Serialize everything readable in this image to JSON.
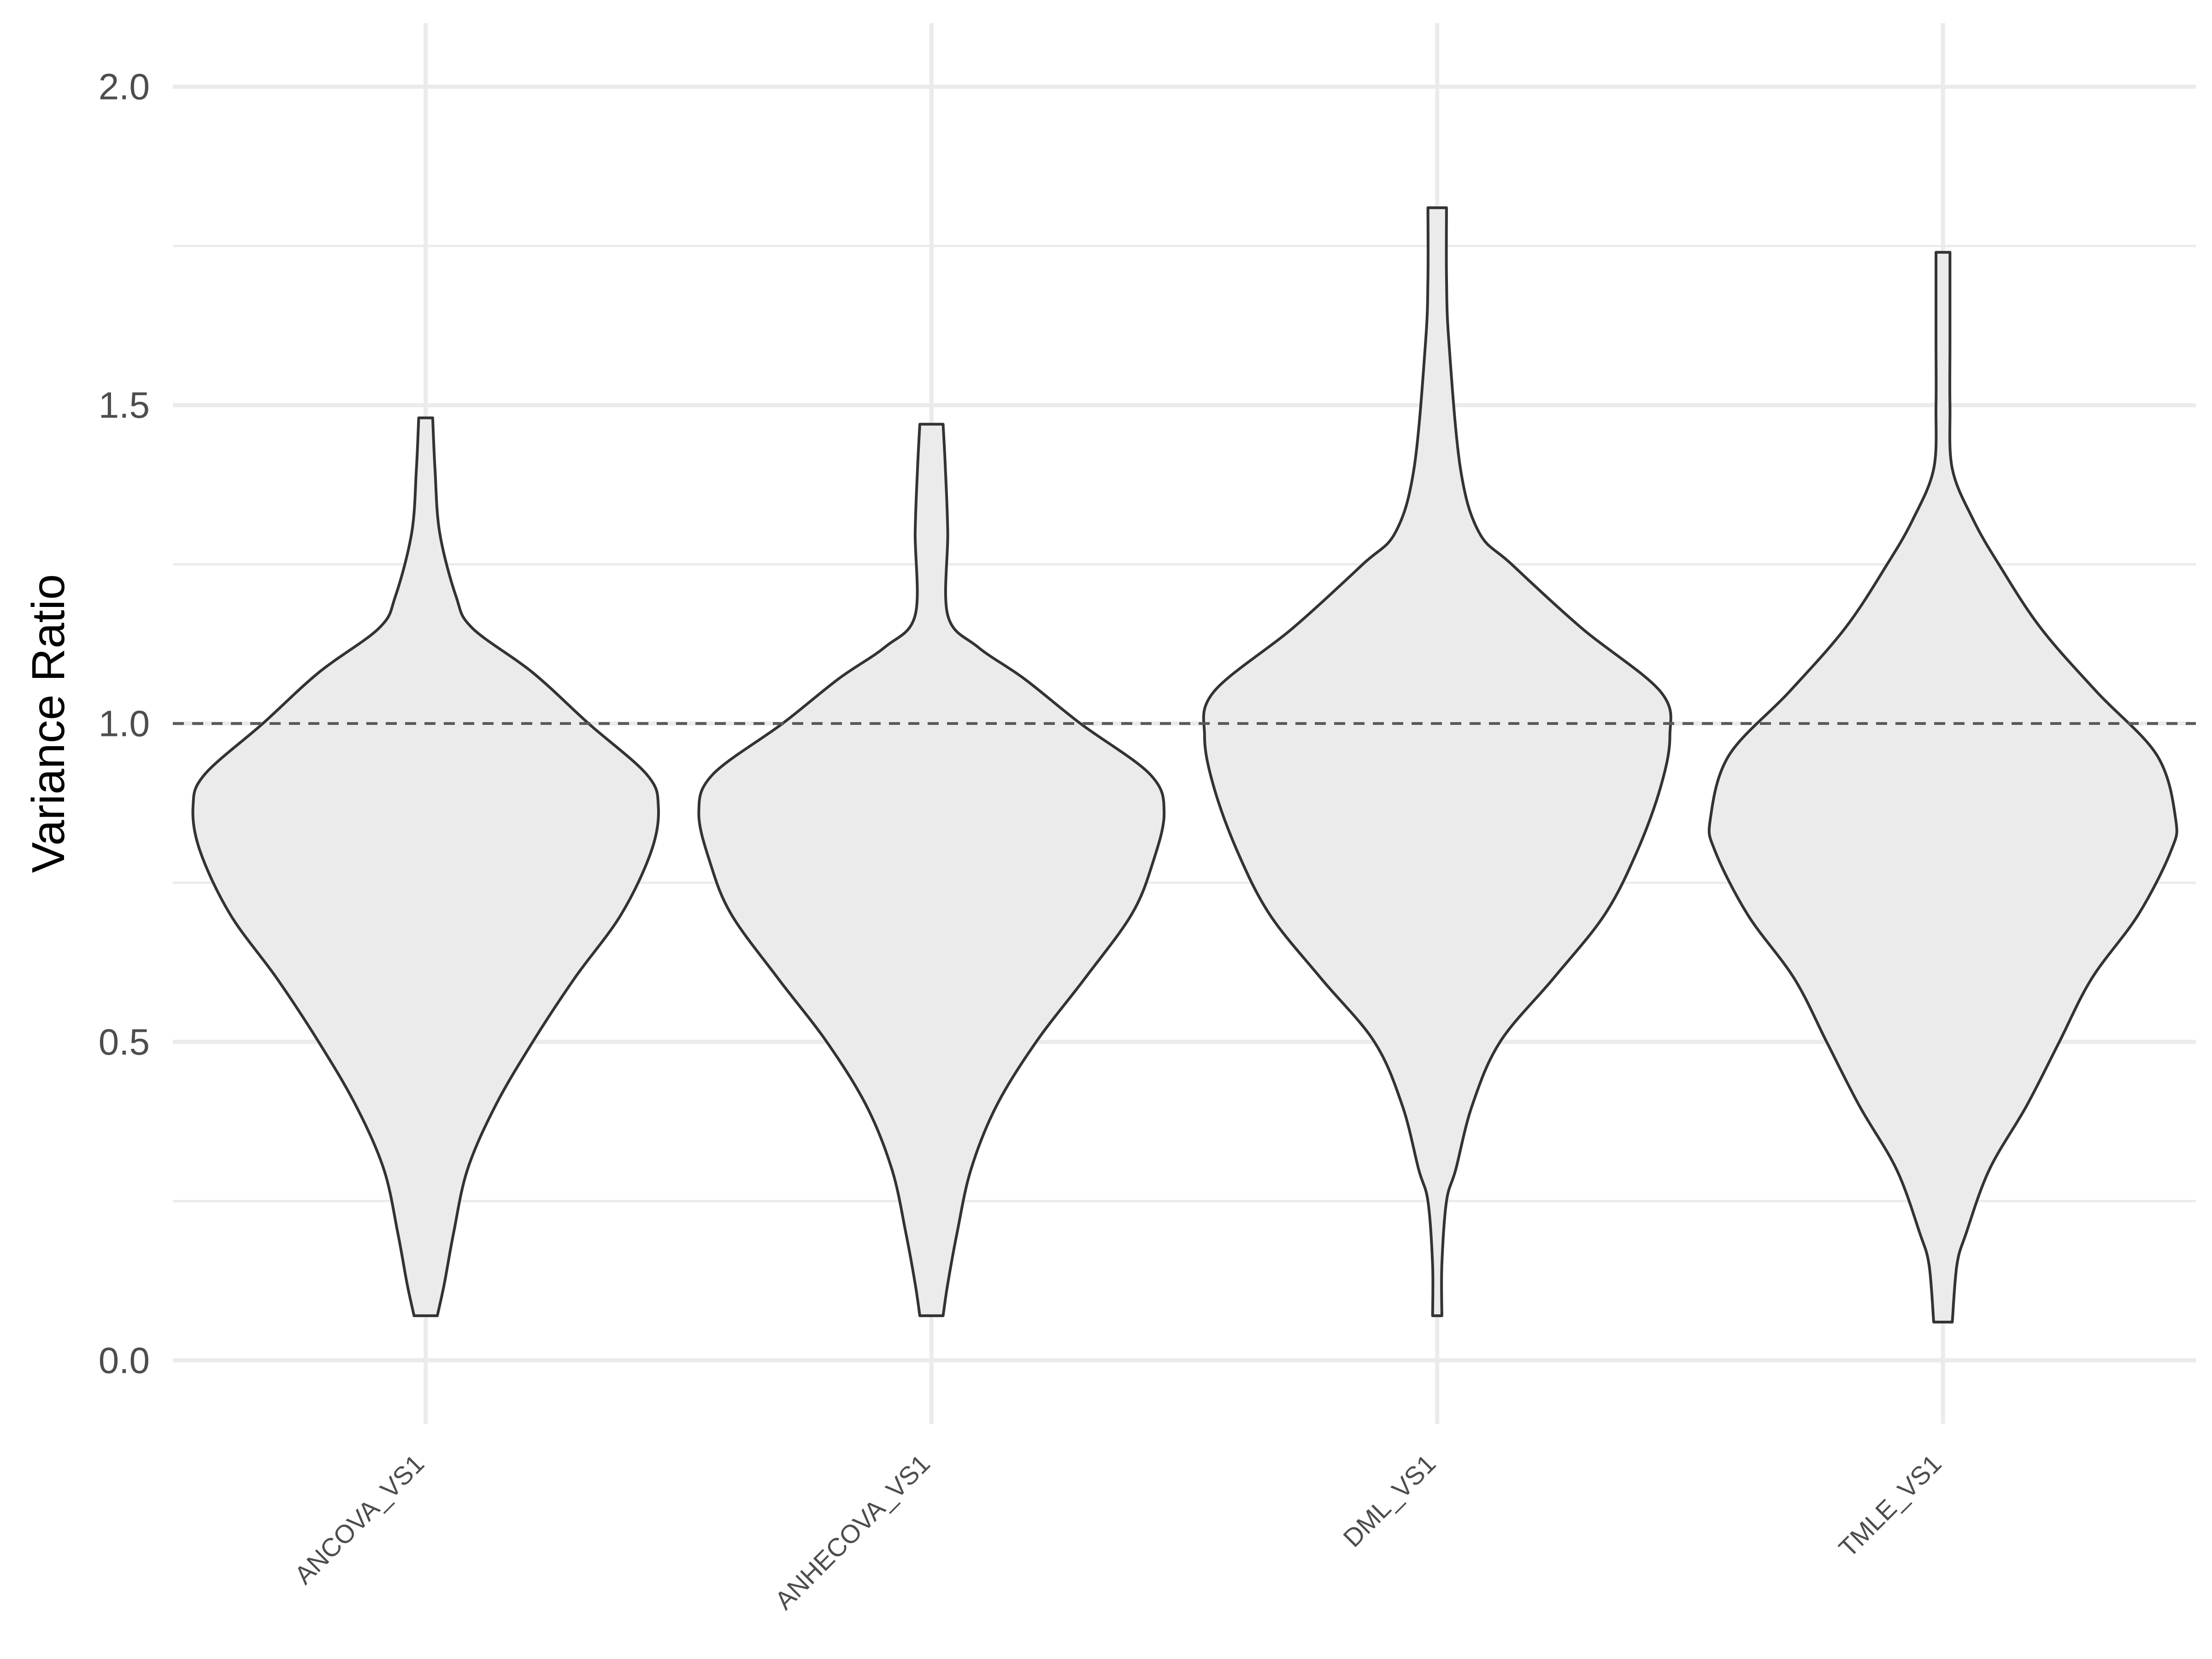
{
  "chart_data": {
    "type": "violin",
    "title": "",
    "xlabel": "",
    "ylabel": "Variance Ratio",
    "ylim": [
      -0.1,
      2.1
    ],
    "yticks": [
      0.0,
      0.5,
      1.0,
      1.5,
      2.0
    ],
    "ytick_labels": [
      "0.0",
      "0.5",
      "1.0",
      "1.5",
      "2.0"
    ],
    "grid": true,
    "legend": "none",
    "reference_line": {
      "y": 1.0,
      "style": "dashed",
      "color": "#595959"
    },
    "fill_color": "#ebebeb",
    "outline_color": "#333333",
    "grid_color": "#ebebeb",
    "categories": [
      "ANCOVA_VS1",
      "ANHECOVA_VS1",
      "DML_VS1",
      "TMLE_VS1"
    ],
    "series": [
      {
        "name": "ANCOVA_VS1",
        "min": 0.07,
        "max": 1.48,
        "density_profile": [
          [
            0.07,
            0.05
          ],
          [
            0.12,
            0.08
          ],
          [
            0.2,
            0.12
          ],
          [
            0.3,
            0.18
          ],
          [
            0.4,
            0.3
          ],
          [
            0.5,
            0.46
          ],
          [
            0.6,
            0.64
          ],
          [
            0.7,
            0.84
          ],
          [
            0.8,
            0.97
          ],
          [
            0.87,
            1.0
          ],
          [
            0.92,
            0.95
          ],
          [
            1.0,
            0.7
          ],
          [
            1.08,
            0.46
          ],
          [
            1.15,
            0.2
          ],
          [
            1.2,
            0.13
          ],
          [
            1.3,
            0.06
          ],
          [
            1.4,
            0.04
          ],
          [
            1.48,
            0.03
          ]
        ]
      },
      {
        "name": "ANHECOVA_VS1",
        "min": 0.07,
        "max": 1.47,
        "density_profile": [
          [
            0.07,
            0.05
          ],
          [
            0.12,
            0.07
          ],
          [
            0.2,
            0.11
          ],
          [
            0.3,
            0.17
          ],
          [
            0.4,
            0.28
          ],
          [
            0.5,
            0.45
          ],
          [
            0.6,
            0.66
          ],
          [
            0.7,
            0.86
          ],
          [
            0.78,
            0.95
          ],
          [
            0.86,
            1.0
          ],
          [
            0.92,
            0.94
          ],
          [
            1.0,
            0.64
          ],
          [
            1.07,
            0.4
          ],
          [
            1.12,
            0.2
          ],
          [
            1.17,
            0.07
          ],
          [
            1.3,
            0.07
          ],
          [
            1.4,
            0.06
          ],
          [
            1.47,
            0.05
          ]
        ]
      },
      {
        "name": "DML_VS1",
        "min": 0.07,
        "max": 1.81,
        "density_profile": [
          [
            0.07,
            0.02
          ],
          [
            0.15,
            0.02
          ],
          [
            0.25,
            0.04
          ],
          [
            0.3,
            0.08
          ],
          [
            0.4,
            0.15
          ],
          [
            0.5,
            0.27
          ],
          [
            0.6,
            0.5
          ],
          [
            0.7,
            0.72
          ],
          [
            0.8,
            0.86
          ],
          [
            0.9,
            0.96
          ],
          [
            0.98,
            1.0
          ],
          [
            1.05,
            0.96
          ],
          [
            1.15,
            0.62
          ],
          [
            1.25,
            0.32
          ],
          [
            1.3,
            0.18
          ],
          [
            1.4,
            0.1
          ],
          [
            1.6,
            0.05
          ],
          [
            1.7,
            0.04
          ],
          [
            1.81,
            0.04
          ]
        ]
      },
      {
        "name": "TMLE_VS1",
        "min": 0.06,
        "max": 1.74,
        "density_profile": [
          [
            0.06,
            0.04
          ],
          [
            0.15,
            0.06
          ],
          [
            0.2,
            0.1
          ],
          [
            0.3,
            0.2
          ],
          [
            0.4,
            0.36
          ],
          [
            0.5,
            0.5
          ],
          [
            0.6,
            0.64
          ],
          [
            0.7,
            0.84
          ],
          [
            0.8,
            0.98
          ],
          [
            0.85,
            1.0
          ],
          [
            0.95,
            0.92
          ],
          [
            1.05,
            0.66
          ],
          [
            1.15,
            0.42
          ],
          [
            1.25,
            0.24
          ],
          [
            1.32,
            0.13
          ],
          [
            1.4,
            0.04
          ],
          [
            1.5,
            0.03
          ],
          [
            1.6,
            0.03
          ],
          [
            1.74,
            0.03
          ]
        ]
      }
    ]
  }
}
